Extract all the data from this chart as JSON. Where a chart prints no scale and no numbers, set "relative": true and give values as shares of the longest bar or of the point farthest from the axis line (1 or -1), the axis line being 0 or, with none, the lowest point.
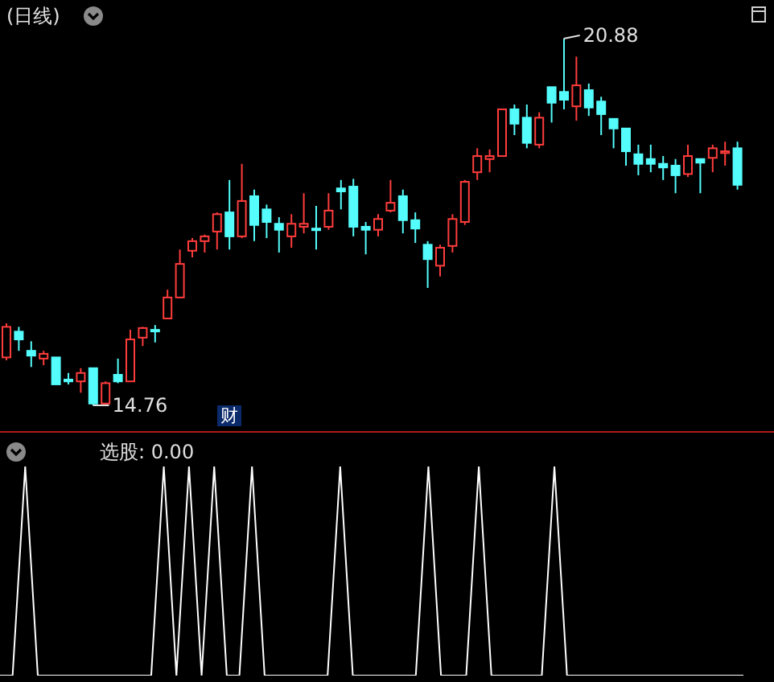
{
  "chart_data": [
    {
      "type": "candlestick",
      "title": "(日线)",
      "categories": [
        null,
        null,
        null,
        null,
        null,
        null,
        null,
        null,
        null,
        null,
        null,
        null,
        null,
        null,
        null,
        null,
        null,
        null,
        null,
        null,
        null,
        null,
        null,
        null,
        null,
        null,
        null,
        null,
        null,
        null,
        null,
        null,
        null,
        null,
        null,
        null,
        null,
        null,
        null,
        null,
        null,
        null,
        null,
        null,
        null,
        null,
        null,
        null,
        null,
        null,
        null,
        null,
        null,
        null,
        null,
        null,
        null,
        null,
        null,
        null
      ],
      "ohlc": [
        [
          15.56,
          16.13,
          15.51,
          16.07
        ],
        [
          15.99,
          16.07,
          15.67,
          15.86
        ],
        [
          15.67,
          15.83,
          15.4,
          15.59
        ],
        [
          15.54,
          15.67,
          15.43,
          15.62
        ],
        [
          15.56,
          15.56,
          15.11,
          15.11
        ],
        [
          15.19,
          15.3,
          15.11,
          15.16
        ],
        [
          15.16,
          15.38,
          14.97,
          15.3
        ],
        [
          15.38,
          15.38,
          14.76,
          14.79
        ],
        [
          14.79,
          15.16,
          14.78,
          15.13
        ],
        [
          15.27,
          15.54,
          15.13,
          15.16
        ],
        [
          15.16,
          16.02,
          15.16,
          15.86
        ],
        [
          15.89,
          16.07,
          15.75,
          16.05
        ],
        [
          16.02,
          16.1,
          15.81,
          16.0
        ],
        [
          16.21,
          16.69,
          16.21,
          16.56
        ],
        [
          16.56,
          17.36,
          16.56,
          17.12
        ],
        [
          17.34,
          17.55,
          17.23,
          17.5
        ],
        [
          17.5,
          17.61,
          17.31,
          17.58
        ],
        [
          17.66,
          17.98,
          17.36,
          17.95
        ],
        [
          17.98,
          18.52,
          17.36,
          17.58
        ],
        [
          17.58,
          18.79,
          17.55,
          18.17
        ],
        [
          18.25,
          18.36,
          17.5,
          17.77
        ],
        [
          18.03,
          18.11,
          17.55,
          17.82
        ],
        [
          17.79,
          17.9,
          17.31,
          17.69
        ],
        [
          17.58,
          17.95,
          17.39,
          17.79
        ],
        [
          17.74,
          18.3,
          17.63,
          17.79
        ],
        [
          17.71,
          18.09,
          17.36,
          17.69
        ],
        [
          17.74,
          18.3,
          17.69,
          18.01
        ],
        [
          18.38,
          18.52,
          18.03,
          18.33
        ],
        [
          18.41,
          18.54,
          17.58,
          17.74
        ],
        [
          17.74,
          17.82,
          17.28,
          17.69
        ],
        [
          17.69,
          17.95,
          17.58,
          17.87
        ],
        [
          18.01,
          18.52,
          17.98,
          18.14
        ],
        [
          18.25,
          18.36,
          17.63,
          17.85
        ],
        [
          17.85,
          17.98,
          17.47,
          17.71
        ],
        [
          17.44,
          17.5,
          16.72,
          17.2
        ],
        [
          17.09,
          17.44,
          16.91,
          17.39
        ],
        [
          17.42,
          17.95,
          17.31,
          17.87
        ],
        [
          17.82,
          18.52,
          17.77,
          18.49
        ],
        [
          18.65,
          19.05,
          18.52,
          18.92
        ],
        [
          18.87,
          19.03,
          18.65,
          18.92
        ],
        [
          18.92,
          19.7,
          18.92,
          19.7
        ],
        [
          19.7,
          19.78,
          19.27,
          19.46
        ],
        [
          19.56,
          19.78,
          19.05,
          19.14
        ],
        [
          19.11,
          19.65,
          19.05,
          19.56
        ],
        [
          20.07,
          20.07,
          19.48,
          19.81
        ],
        [
          19.99,
          20.88,
          19.7,
          19.86
        ],
        [
          19.75,
          20.58,
          19.51,
          20.1
        ],
        [
          20.02,
          20.13,
          19.59,
          19.73
        ],
        [
          19.83,
          19.91,
          19.27,
          19.62
        ],
        [
          19.54,
          19.54,
          19.05,
          19.38
        ],
        [
          19.38,
          19.38,
          18.76,
          19.0
        ],
        [
          18.95,
          19.11,
          18.6,
          18.79
        ],
        [
          18.87,
          19.11,
          18.65,
          18.79
        ],
        [
          18.79,
          18.92,
          18.52,
          18.73
        ],
        [
          18.76,
          18.87,
          18.3,
          18.6
        ],
        [
          18.62,
          19.11,
          18.57,
          18.92
        ],
        [
          18.87,
          18.87,
          18.3,
          18.81
        ],
        [
          18.89,
          19.11,
          18.65,
          19.05
        ],
        [
          18.97,
          19.16,
          18.76,
          19.0
        ],
        [
          19.05,
          19.16,
          18.36,
          18.44
        ]
      ],
      "colors": [
        "#ff3c3c",
        "#54fcfc",
        "#54fcfc",
        "#ff3c3c",
        "#54fcfc",
        "#54fcfc",
        "#ff3c3c",
        "#54fcfc",
        "#ff3c3c",
        "#54fcfc",
        "#ff3c3c",
        "#ff3c3c",
        "#54fcfc",
        "#ff3c3c",
        "#ff3c3c",
        "#ff3c3c",
        "#ff3c3c",
        "#ff3c3c",
        "#54fcfc",
        "#ff3c3c",
        "#54fcfc",
        "#54fcfc",
        "#54fcfc",
        "#ff3c3c",
        "#ff3c3c",
        "#54fcfc",
        "#ff3c3c",
        "#54fcfc",
        "#54fcfc",
        "#54fcfc",
        "#ff3c3c",
        "#ff3c3c",
        "#54fcfc",
        "#54fcfc",
        "#54fcfc",
        "#ff3c3c",
        "#ff3c3c",
        "#ff3c3c",
        "#ff3c3c",
        "#ff3c3c",
        "#ff3c3c",
        "#54fcfc",
        "#54fcfc",
        "#ff3c3c",
        "#54fcfc",
        "#54fcfc",
        "#ff3c3c",
        "#54fcfc",
        "#54fcfc",
        "#54fcfc",
        "#54fcfc",
        "#54fcfc",
        "#54fcfc",
        "#54fcfc",
        "#54fcfc",
        "#ff3c3c",
        "#54fcfc",
        "#ff3c3c",
        "#ff3c3c",
        "#54fcfc"
      ],
      "annotations": [
        "20.88",
        "14.76",
        "财"
      ]
    },
    {
      "type": "line",
      "title": "选股: 0.00",
      "relative": true,
      "categories": [
        null,
        null,
        null,
        null,
        null,
        null,
        null,
        null,
        null,
        null,
        null,
        null,
        null,
        null,
        null,
        null,
        null,
        null,
        null,
        null,
        null,
        null,
        null,
        null,
        null,
        null,
        null,
        null,
        null,
        null,
        null,
        null,
        null,
        null,
        null,
        null,
        null,
        null,
        null,
        null,
        null,
        null,
        null,
        null,
        null,
        null,
        null,
        null,
        null,
        null,
        null,
        null,
        null,
        null,
        null,
        null,
        null,
        null,
        null,
        null
      ],
      "series": [
        {
          "color": "#ffffff",
          "values": [
            0,
            0,
            1,
            0,
            0,
            0,
            0,
            0,
            0,
            0,
            0,
            0,
            0,
            1,
            0,
            1,
            0,
            1,
            0,
            0,
            1,
            0,
            0,
            0,
            0,
            0,
            0,
            1,
            0,
            0,
            0,
            0,
            0,
            0,
            1,
            0,
            0,
            0,
            1,
            0,
            0,
            0,
            0,
            0,
            1,
            0,
            0,
            0,
            0,
            0,
            0,
            0,
            0,
            0,
            0,
            0,
            0,
            0,
            0,
            0
          ]
        }
      ]
    }
  ]
}
